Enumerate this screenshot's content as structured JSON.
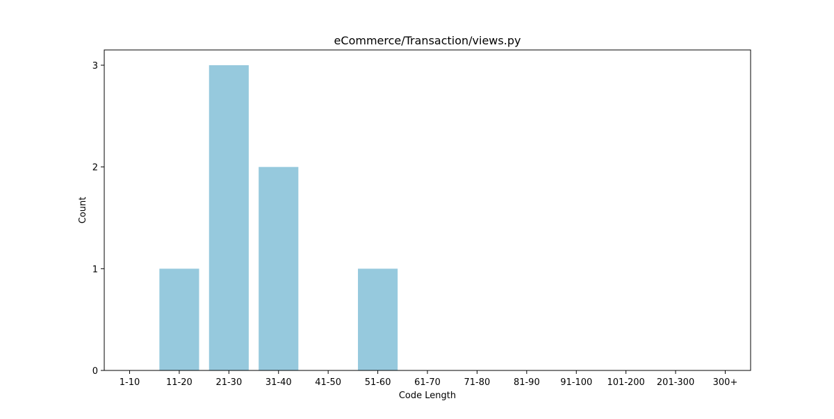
{
  "chart_data": {
    "type": "bar",
    "title": "eCommerce/Transaction/views.py",
    "xlabel": "Code Length",
    "ylabel": "Count",
    "categories": [
      "1-10",
      "11-20",
      "21-30",
      "31-40",
      "41-50",
      "51-60",
      "61-70",
      "71-80",
      "81-90",
      "91-100",
      "101-200",
      "201-300",
      "300+"
    ],
    "values": [
      0,
      1,
      3,
      2,
      0,
      1,
      0,
      0,
      0,
      0,
      0,
      0,
      0
    ],
    "ylim": [
      0,
      3.15
    ],
    "yticks": [
      0,
      1,
      2,
      3
    ],
    "grid": false,
    "bar_color": "#96c9dd"
  }
}
